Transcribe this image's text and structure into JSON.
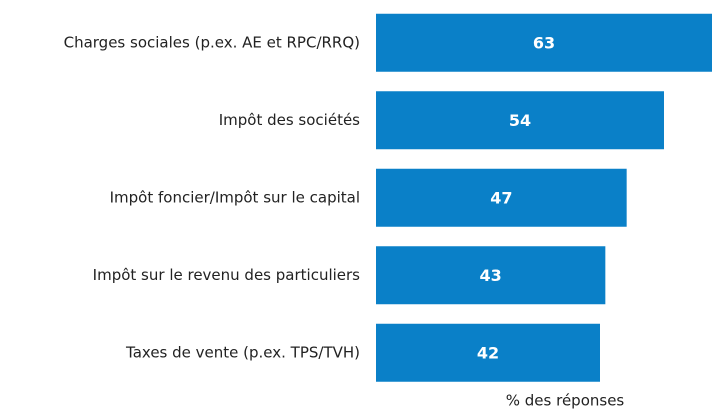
{
  "chart_data": {
    "type": "bar",
    "orientation": "horizontal",
    "categories": [
      "Charges sociales (p.ex. AE et RPC/RRQ)",
      "Impôt des sociétés",
      "Impôt foncier/Impôt  sur le capital",
      "Impôt sur le revenu des particuliers",
      "Taxes de vente (p.ex. TPS/TVH)"
    ],
    "values": [
      63,
      54,
      47,
      43,
      42
    ],
    "color": "#0a80c8",
    "xlim": [
      0,
      63
    ],
    "xlabel": "% des réponses"
  }
}
